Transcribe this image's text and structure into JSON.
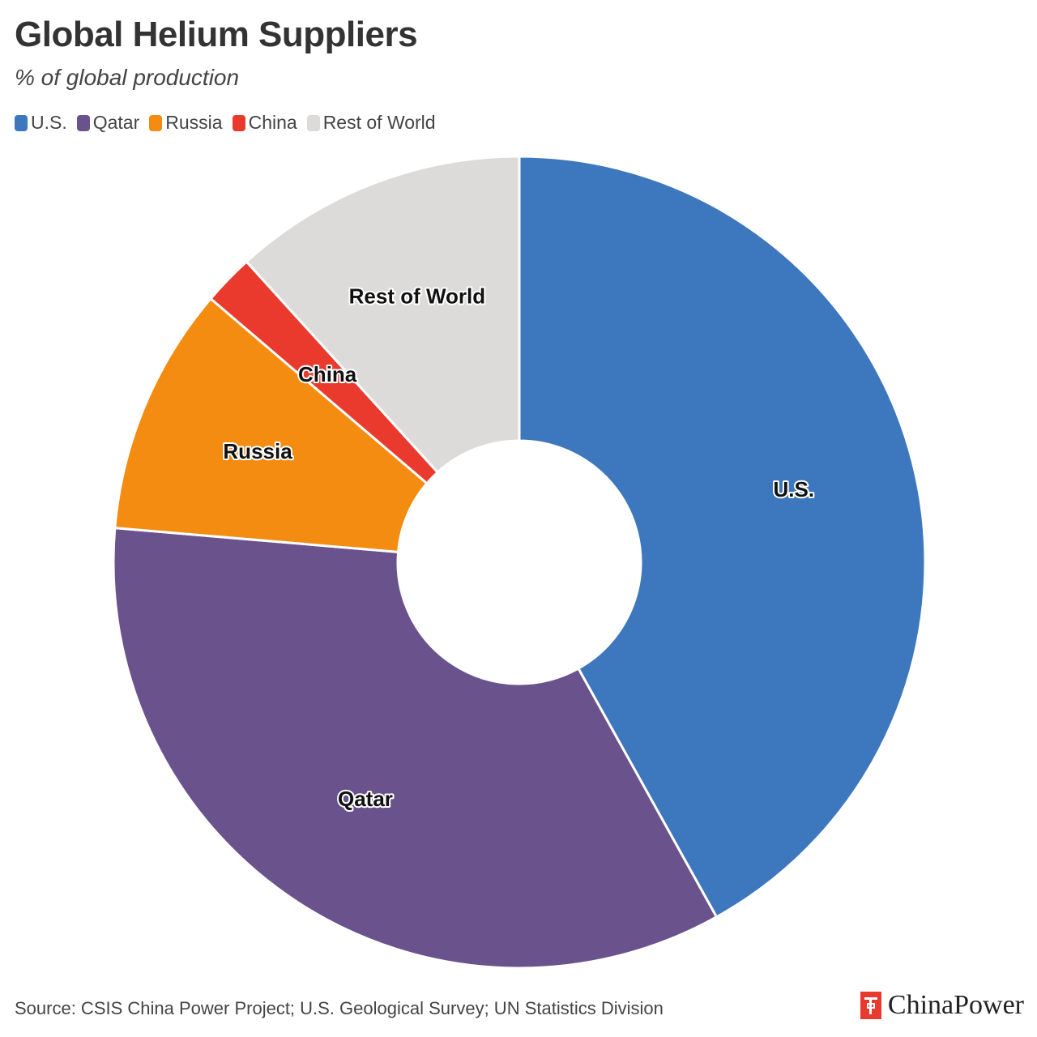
{
  "header": {
    "title": "Global Helium Suppliers",
    "subtitle": "% of global production"
  },
  "footer": {
    "source": "Source: CSIS China Power Project; U.S. Geological Survey; UN Statistics Division",
    "brand": "ChinaPower",
    "brand_icon": "chinapower-logo-icon"
  },
  "chart_data": {
    "type": "pie",
    "style": "donut",
    "title": "Global Helium Suppliers",
    "subtitle": "% of global production",
    "legend_position": "top-left",
    "categories": [
      "U.S.",
      "Qatar",
      "Russia",
      "China",
      "Rest of World"
    ],
    "values": [
      43.6,
      35.8,
      10.3,
      2.1,
      12.2
    ],
    "colors": [
      "#3d77bd",
      "#6a528d",
      "#f48c12",
      "#ea3a2d",
      "#dcdbd9"
    ]
  }
}
